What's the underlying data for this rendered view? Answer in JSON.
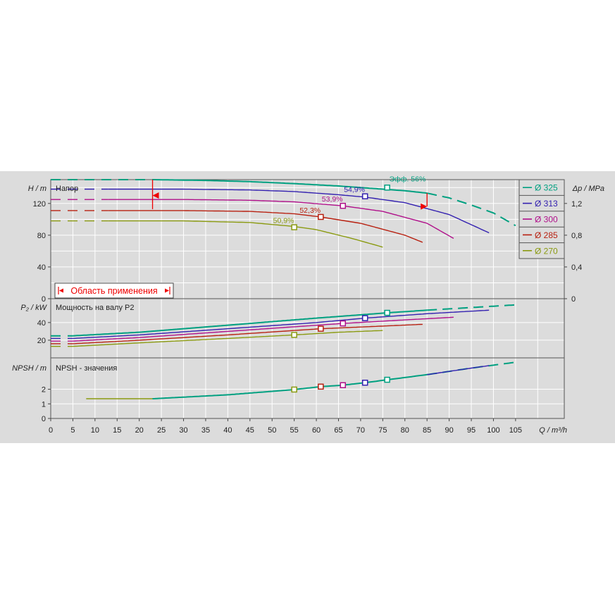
{
  "chart_data": {
    "type": "line",
    "x_axis": {
      "label": "Q / m³/h",
      "ticks": [
        0,
        5,
        10,
        15,
        20,
        25,
        30,
        35,
        40,
        45,
        50,
        55,
        60,
        65,
        70,
        75,
        80,
        85,
        90,
        95,
        100,
        105
      ],
      "range": [
        0,
        116
      ]
    },
    "panels": {
      "head": {
        "title": "Напор",
        "ylabel": "H / m",
        "ylabel_right": "Δp / MPa",
        "yticks": [
          0,
          40,
          80,
          120
        ],
        "yticks_right": [
          "0",
          "0,4",
          "0,8",
          "1,2"
        ],
        "ylim": [
          0,
          150
        ],
        "series": [
          {
            "name": "Ø 325",
            "color": "#00a080",
            "dashed_until": 23,
            "solid_until": 85,
            "x": [
              0,
              23,
              35,
              45,
              55,
              65,
              70,
              75,
              80,
              85,
              90,
              95,
              100,
              105
            ],
            "y": [
              150,
              150,
              149,
              147.5,
              145,
              142,
              140,
              138,
              136,
              133,
              127,
              118,
              108,
              92
            ]
          },
          {
            "name": "Ø 313",
            "color": "#3320b0",
            "dashed_until": 13,
            "solid_until": 99,
            "x": [
              0,
              13,
              30,
              45,
              55,
              65,
              71,
              80,
              90,
              99
            ],
            "y": [
              138,
              138,
              138,
              137,
              135,
              131,
              128,
              121,
              106,
              83
            ]
          },
          {
            "name": "Ø 300",
            "color": "#b0108a",
            "dashed_until": 13,
            "solid_until": 91,
            "x": [
              0,
              13,
              30,
              45,
              55,
              66,
              75,
              85,
              91
            ],
            "y": [
              125,
              125,
              125,
              124,
              122,
              117,
              110,
              95,
              76
            ]
          },
          {
            "name": "Ø 285",
            "color": "#b82010",
            "dashed_until": 13,
            "solid_until": 84,
            "x": [
              0,
              13,
              30,
              45,
              55,
              61,
              70,
              80,
              84
            ],
            "y": [
              111,
              111,
              111,
              110,
              107,
              103,
              95,
              80,
              71
            ]
          },
          {
            "name": "Ø 270",
            "color": "#8a9a10",
            "dashed_until": 13,
            "solid_until": 75,
            "x": [
              0,
              13,
              30,
              45,
              55,
              60,
              68,
              75
            ],
            "y": [
              98,
              98,
              98,
              96,
              91,
              87,
              76,
              65
            ]
          }
        ],
        "efficiency_points": [
          {
            "label": "Эфф.  56%",
            "x": 76,
            "y": 140,
            "color": "#00a080"
          },
          {
            "label": "54,9%",
            "x": 71,
            "y": 129,
            "color": "#3320b0"
          },
          {
            "label": "53,9%",
            "x": 66,
            "y": 117,
            "color": "#b0108a"
          },
          {
            "label": "52,3%",
            "x": 61,
            "y": 103,
            "color": "#b82010"
          },
          {
            "label": "50,9%",
            "x": 55,
            "y": 90,
            "color": "#8a9a10"
          }
        ],
        "range_markers": {
          "min_q": 23,
          "max_q": 85,
          "color": "#ee0000"
        },
        "range_label": "Область применения"
      },
      "power": {
        "title": "Мощность на валу P2",
        "ylabel": "P₂ / kW",
        "yticks": [
          20,
          40
        ],
        "ylim": [
          0,
          67
        ],
        "series": [
          {
            "name": "Ø 325",
            "color": "#00a080",
            "dashed_until": 5,
            "solid_until": 85,
            "x": [
              0,
              5,
              20,
              40,
              60,
              76,
              85,
              95,
              105
            ],
            "y": [
              25,
              25,
              29,
              37,
              45,
              51,
              54,
              57,
              60
            ]
          },
          {
            "name": "Ø 313",
            "color": "#3320b0",
            "dashed_until": 5,
            "solid_until": 99,
            "x": [
              0,
              5,
              20,
              40,
              60,
              71,
              85,
              99
            ],
            "y": [
              22,
              22,
              26,
              33,
              40,
              45,
              50,
              54
            ]
          },
          {
            "name": "Ø 300",
            "color": "#b0108a",
            "dashed_until": 5,
            "solid_until": 91,
            "x": [
              0,
              5,
              20,
              40,
              66,
              80,
              91
            ],
            "y": [
              19,
              19,
              23,
              30,
              39,
              43,
              46
            ]
          },
          {
            "name": "Ø 285",
            "color": "#b82010",
            "dashed_until": 5,
            "solid_until": 84,
            "x": [
              0,
              5,
              20,
              40,
              61,
              75,
              84
            ],
            "y": [
              16,
              16,
              20,
              26,
              33,
              36,
              38
            ]
          },
          {
            "name": "Ø 270",
            "color": "#8a9a10",
            "dashed_until": 5,
            "solid_until": 75,
            "x": [
              0,
              5,
              20,
              40,
              55,
              65,
              75
            ],
            "y": [
              13,
              13,
              17,
              22,
              26,
              29,
              31
            ]
          }
        ],
        "markers": [
          {
            "x": 76,
            "y": 51,
            "color": "#00a080"
          },
          {
            "x": 71,
            "y": 45,
            "color": "#3320b0"
          },
          {
            "x": 66,
            "y": 39,
            "color": "#b0108a"
          },
          {
            "x": 61,
            "y": 33,
            "color": "#b82010"
          },
          {
            "x": 55,
            "y": 26,
            "color": "#8a9a10"
          }
        ]
      },
      "npsh": {
        "title": "NPSH - значения",
        "ylabel": "NPSH / m",
        "yticks": [
          0,
          1,
          2
        ],
        "ylim": [
          0,
          4.15
        ],
        "series": [
          {
            "name": "Ø 270",
            "color": "#8a9a10",
            "dashed_until": 0,
            "solid_until": 23,
            "x": [
              8,
              23
            ],
            "y": [
              1.35,
              1.35
            ]
          },
          {
            "name": "Ø 325",
            "color": "#00a080",
            "dashed_until": 0,
            "solid_until": 85,
            "x": [
              23,
              40,
              55,
              61,
              66,
              71,
              76,
              85,
              95,
              105
            ],
            "y": [
              1.35,
              1.62,
              1.98,
              2.18,
              2.28,
              2.45,
              2.65,
              3.0,
              3.45,
              3.85
            ]
          },
          {
            "name": "Ø 313",
            "color": "#3320b0",
            "dashed_until": 0,
            "solid_until": 99,
            "x": [
              85,
              95,
              99
            ],
            "y": [
              3.0,
              3.45,
              3.62
            ]
          }
        ],
        "markers": [
          {
            "x": 76,
            "y": 2.65,
            "color": "#00a080"
          },
          {
            "x": 71,
            "y": 2.45,
            "color": "#3320b0"
          },
          {
            "x": 66,
            "y": 2.28,
            "color": "#b0108a"
          },
          {
            "x": 61,
            "y": 2.18,
            "color": "#b82010"
          },
          {
            "x": 55,
            "y": 1.98,
            "color": "#8a9a10"
          }
        ]
      }
    },
    "legend": {
      "placement": "top-right",
      "entries": [
        {
          "label": "Ø 325",
          "color": "#00a080"
        },
        {
          "label": "Ø 313",
          "color": "#3320b0"
        },
        {
          "label": "Ø 300",
          "color": "#b0108a"
        },
        {
          "label": "Ø 285",
          "color": "#b82010"
        },
        {
          "label": "Ø 270",
          "color": "#8a9a10"
        }
      ]
    },
    "grid": true
  }
}
